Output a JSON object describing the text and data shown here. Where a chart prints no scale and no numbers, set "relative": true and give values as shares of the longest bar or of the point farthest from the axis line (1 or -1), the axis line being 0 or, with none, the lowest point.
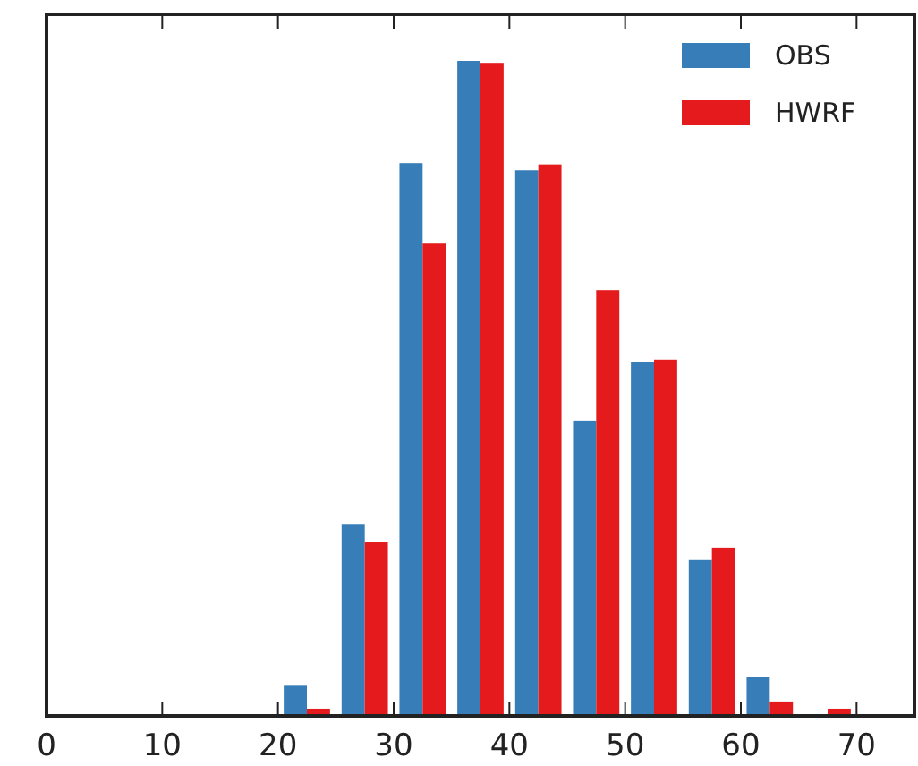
{
  "chart_data": {
    "type": "bar",
    "relative": true,
    "series": [
      {
        "name": "OBS",
        "color": "#377eb8",
        "x": [
          21.5,
          26.5,
          31.5,
          36.5,
          41.5,
          46.5,
          51.5,
          56.5,
          61.5,
          66.5
        ],
        "values": [
          0.046,
          0.292,
          0.844,
          1,
          0.833,
          0.451,
          0.541,
          0.238,
          0.06,
          0
        ]
      },
      {
        "name": "HWRF",
        "color": "#e41a1c",
        "x": [
          23.5,
          28.5,
          33.5,
          38.5,
          43.5,
          48.5,
          53.5,
          58.5,
          63.5,
          68.5
        ],
        "values": [
          0.011,
          0.265,
          0.721,
          0.997,
          0.842,
          0.65,
          0.544,
          0.257,
          0.022,
          0.011
        ]
      }
    ],
    "xlim": [
      0,
      75
    ],
    "xticks": [
      0,
      10,
      20,
      30,
      40,
      50,
      60,
      70
    ],
    "legend": "top right",
    "grid": false
  }
}
